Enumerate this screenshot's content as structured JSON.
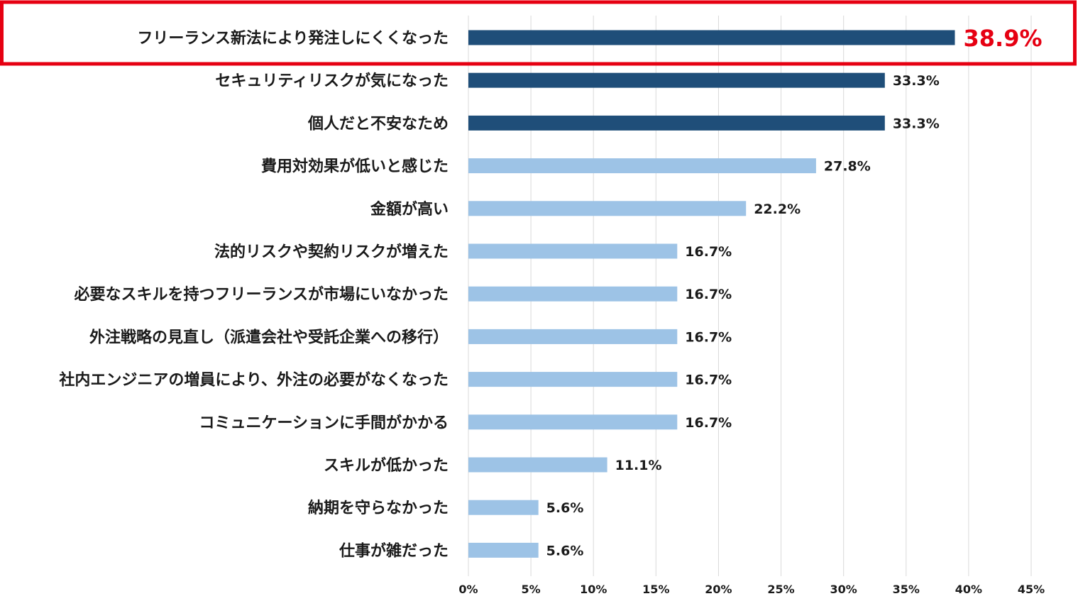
{
  "chart_data": {
    "type": "bar",
    "orientation": "horizontal",
    "title": "",
    "xlabel": "",
    "ylabel": "",
    "xlim": [
      0,
      45
    ],
    "x_ticks": [
      0,
      5,
      10,
      15,
      20,
      25,
      30,
      35,
      40,
      45
    ],
    "x_tick_labels": [
      "0%",
      "5%",
      "10%",
      "15%",
      "20%",
      "25%",
      "30%",
      "35%",
      "40%",
      "45%"
    ],
    "grid": true,
    "categories": [
      "フリーランス新法により発注しにくくなった",
      "セキュリティリスクが気になった",
      "個人だと不安なため",
      "費用対効果が低いと感じた",
      "金額が高い",
      "法的リスクや契約リスクが増えた",
      "必要なスキルを持つフリーランスが市場にいなかった",
      "外注戦略の見直し（派遣会社や受託企業への移行）",
      "社内エンジニアの増員により、外注の必要がなくなった",
      "コミュニケーションに手間がかかる",
      "スキルが低かった",
      "納期を守らなかった",
      "仕事が雑だった"
    ],
    "values": [
      38.9,
      33.3,
      33.3,
      27.8,
      22.2,
      16.7,
      16.7,
      16.7,
      16.7,
      16.7,
      11.1,
      5.6,
      5.6
    ],
    "value_labels": [
      "38.9%",
      "33.3%",
      "33.3%",
      "27.8%",
      "22.2%",
      "16.7%",
      "16.7%",
      "16.7%",
      "16.7%",
      "16.7%",
      "11.1%",
      "5.6%",
      "5.6%"
    ],
    "highlighted_index": 0,
    "dark_count": 3
  },
  "colors": {
    "bar_dark": "#1f4e79",
    "bar_light": "#9dc3e6",
    "highlight": "#e60012",
    "grid": "#d9d9d9",
    "text": "#1a1a1a"
  }
}
